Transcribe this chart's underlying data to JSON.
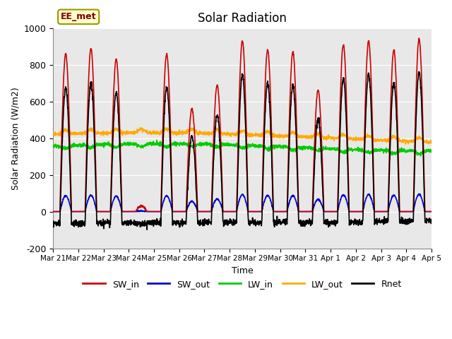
{
  "title": "Solar Radiation",
  "ylabel": "Solar Radiation (W/m2)",
  "xlabel": "Time",
  "ylim": [
    -200,
    1000
  ],
  "background_color": "#e8e8e8",
  "legend_label": "EE_met",
  "series": {
    "SW_in": {
      "color": "#cc0000",
      "lw": 1.2
    },
    "SW_out": {
      "color": "#0000cc",
      "lw": 1.2
    },
    "LW_in": {
      "color": "#00cc00",
      "lw": 1.2
    },
    "LW_out": {
      "color": "#ffaa00",
      "lw": 1.2
    },
    "Rnet": {
      "color": "#000000",
      "lw": 1.2
    }
  },
  "xtick_labels": [
    "Mar 21",
    "Mar 22",
    "Mar 23",
    "Mar 24",
    "Mar 25",
    "Mar 26",
    "Mar 27",
    "Mar 28",
    "Mar 29",
    "Mar 30",
    "Mar 31",
    "Apr 1",
    "Apr 2",
    "Apr 3",
    "Apr 4",
    "Apr 5"
  ],
  "ytick_labels": [
    -200,
    0,
    200,
    400,
    600,
    800,
    1000
  ],
  "n_days": 15,
  "points_per_day": 144,
  "SW_in_peaks": [
    860,
    890,
    830,
    30,
    860,
    560,
    690,
    930,
    880,
    870,
    660,
    910,
    930,
    880,
    940
  ],
  "LW_in_base": 340,
  "LW_out_base": 390
}
